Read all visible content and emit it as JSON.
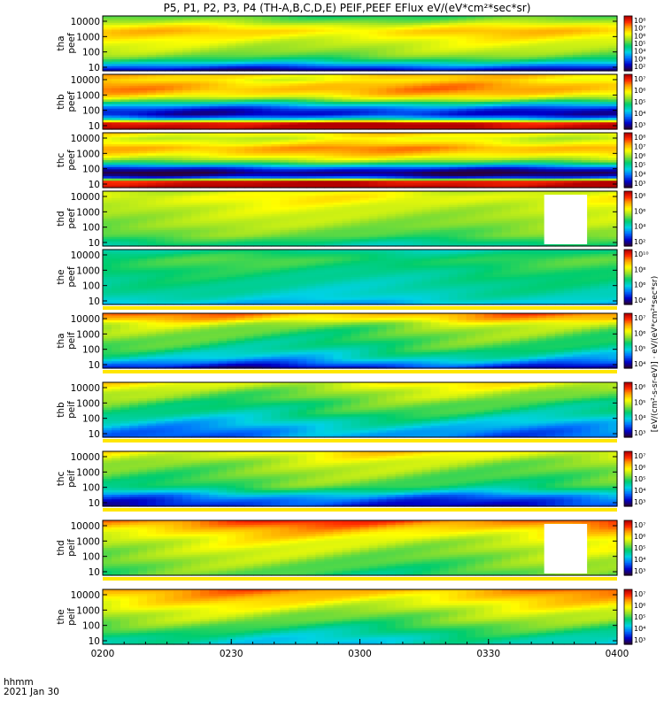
{
  "chart_data": {
    "type": "heatmap",
    "title": "P5, P1, P2, P3, P4 (TH-A,B,C,D,E) PEIF,PEEF EFlux eV/(eV*cm²*sec*sr)",
    "x_axis": {
      "tick_labels": [
        "0200",
        "0230",
        "0300",
        "0330",
        "0400"
      ],
      "corner_label_line1": "hhmm",
      "corner_label_line2": "2021 Jan 30",
      "range": [
        "02:00",
        "04:00"
      ]
    },
    "colorbar_label": "[eV/(cm²-s-sr-eV)] · eV/(eV*cm²*sec*sr)",
    "y_scale": "log",
    "panels": [
      {
        "probe_label": "tha",
        "species_label": "peef",
        "yticks": [
          "10000",
          "1000",
          "100",
          "10"
        ],
        "cbar_ticks": [
          "10⁸",
          "10⁷",
          "10⁶",
          "10⁵",
          "10⁴",
          "10³",
          "10²"
        ],
        "cbar_range_log": [
          2,
          8.6
        ],
        "profile": [
          5.3,
          5.8,
          6.5,
          6.9,
          6.6,
          6.3,
          6.1,
          5.9,
          5.6,
          5.0,
          3.8,
          2.6
        ],
        "gap_bands": []
      },
      {
        "probe_label": "thb",
        "species_label": "peef",
        "yticks": [
          "10000",
          "1000",
          "100",
          "10"
        ],
        "cbar_ticks": [
          "10⁷",
          "10⁶",
          "10⁵",
          "10⁴",
          "10³"
        ],
        "cbar_range_log": [
          2.5,
          7.8
        ],
        "profile": [
          6.4,
          6.2,
          6.6,
          6.7,
          6.4,
          5.6,
          4.4,
          3.4,
          3.0,
          4.0,
          7.6,
          7.9
        ],
        "gap_bands": []
      },
      {
        "probe_label": "thc",
        "species_label": "peef",
        "yticks": [
          "10000",
          "1000",
          "100",
          "10"
        ],
        "cbar_ticks": [
          "10⁸",
          "10⁷",
          "10⁶",
          "10⁵",
          "10⁴",
          "10³"
        ],
        "cbar_range_log": [
          2.5,
          8.6
        ],
        "profile": [
          6.8,
          6.4,
          6.8,
          7.4,
          7.1,
          6.5,
          5.6,
          3.8,
          2.6,
          3.1,
          8.3,
          8.6
        ],
        "gap_bands": []
      },
      {
        "probe_label": "thd",
        "species_label": "peef",
        "yticks": [
          "10000",
          "1000",
          "100",
          "10"
        ],
        "cbar_ticks": [
          "10⁸",
          "10⁶",
          "10⁴",
          "10²"
        ],
        "cbar_range_log": [
          1.8,
          8.6
        ],
        "profile": [
          6.2,
          6.4,
          6.3,
          6.1,
          6.0,
          5.9,
          5.8,
          5.7,
          5.5,
          5.4,
          5.0,
          4.6
        ],
        "gap_bands": [
          {
            "start": "03:43",
            "end": "03:53"
          }
        ]
      },
      {
        "probe_label": "the",
        "species_label": "peef",
        "yticks": [
          "10000",
          "1000",
          "100",
          "10"
        ],
        "cbar_ticks": [
          "10¹⁰",
          "10⁸",
          "10⁶",
          "10⁴"
        ],
        "cbar_range_log": [
          3.0,
          10.4
        ],
        "profile": [
          6.0,
          6.4,
          6.6,
          6.5,
          6.3,
          6.2,
          6.1,
          6.0,
          5.9,
          5.8,
          5.6,
          5.2
        ],
        "gap_bands": []
      },
      {
        "probe_label": "tha",
        "species_label": "peif",
        "yticks": [
          "10000",
          "1000",
          "100",
          "10"
        ],
        "cbar_ticks": [
          "10⁷",
          "10⁶",
          "10⁵",
          "10⁴"
        ],
        "cbar_range_log": [
          3.4,
          7.4
        ],
        "profile": [
          6.6,
          6.3,
          5.8,
          5.6,
          5.5,
          5.4,
          5.3,
          5.2,
          5.0,
          4.8,
          4.4,
          3.9
        ],
        "gap_bands": []
      },
      {
        "probe_label": "thb",
        "species_label": "peif",
        "yticks": [
          "10000",
          "1000",
          "100",
          "10"
        ],
        "cbar_ticks": [
          "10⁶",
          "10⁵",
          "10⁴",
          "10³"
        ],
        "cbar_range_log": [
          2.6,
          6.8
        ],
        "profile": [
          5.4,
          5.2,
          5.0,
          4.9,
          4.7,
          4.6,
          4.5,
          4.3,
          4.1,
          3.9,
          3.7,
          3.6
        ],
        "gap_bands": []
      },
      {
        "probe_label": "thc",
        "species_label": "peif",
        "yticks": [
          "10000",
          "1000",
          "100",
          "10"
        ],
        "cbar_ticks": [
          "10⁷",
          "10⁶",
          "10⁵",
          "10⁴",
          "10³"
        ],
        "cbar_range_log": [
          2.8,
          7.3
        ],
        "profile": [
          5.9,
          5.7,
          5.5,
          5.4,
          5.3,
          5.2,
          5.1,
          5.0,
          4.6,
          4.0,
          3.6,
          3.4
        ],
        "gap_bands": []
      },
      {
        "probe_label": "thd",
        "species_label": "peif",
        "yticks": [
          "10000",
          "1000",
          "100",
          "10"
        ],
        "cbar_ticks": [
          "10⁷",
          "10⁶",
          "10⁵",
          "10⁴",
          "10³"
        ],
        "cbar_range_log": [
          2.8,
          7.3
        ],
        "profile": [
          6.7,
          6.4,
          6.1,
          5.9,
          5.7,
          5.6,
          5.5,
          5.4,
          5.3,
          5.2,
          5.1,
          5.0
        ],
        "gap_bands": [
          {
            "start": "03:43",
            "end": "03:53"
          }
        ]
      },
      {
        "probe_label": "the",
        "species_label": "peif",
        "yticks": [
          "10000",
          "1000",
          "100",
          "10"
        ],
        "cbar_ticks": [
          "10⁷",
          "10⁶",
          "10⁵",
          "10⁴",
          "10³"
        ],
        "cbar_range_log": [
          2.8,
          7.3
        ],
        "profile": [
          6.4,
          6.2,
          6.0,
          5.8,
          5.6,
          5.4,
          5.3,
          5.1,
          4.9,
          4.7,
          4.5,
          4.4
        ],
        "gap_bands": []
      }
    ]
  }
}
